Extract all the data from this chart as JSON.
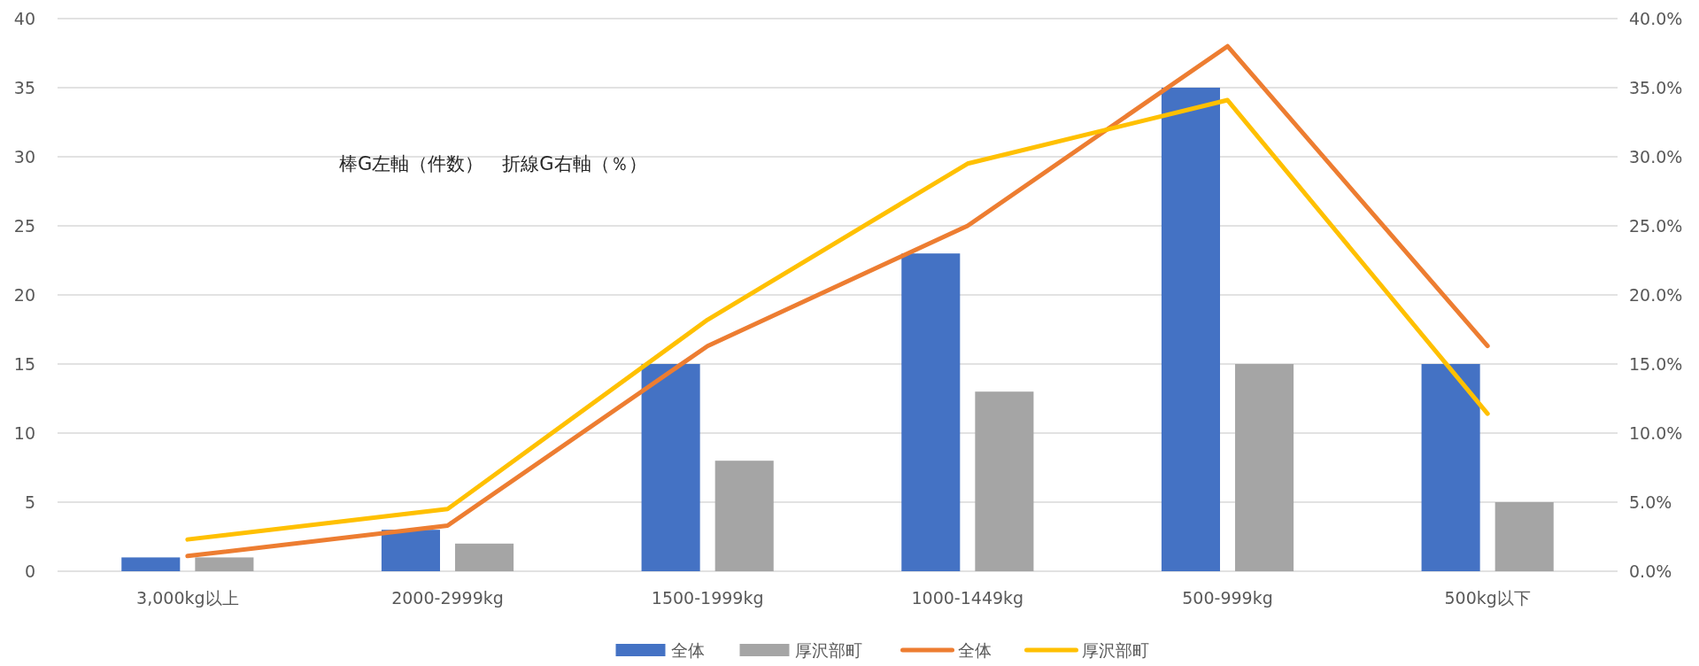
{
  "chart_data": {
    "type": "bar",
    "categories": [
      "3,000kg以上",
      "2000-2999kg",
      "1500-1999kg",
      "1000-1449kg",
      "500-999kg",
      "500kg以下"
    ],
    "series": [
      {
        "name": "全体",
        "color": "#4472c4",
        "values": [
          1,
          3,
          15,
          23,
          35,
          15
        ]
      },
      {
        "name": "厚沢部町",
        "color": "#a5a5a5",
        "values": [
          1,
          2,
          8,
          13,
          15,
          5
        ]
      },
      {
        "name": "全体",
        "type": "line",
        "axis": "y2",
        "color": "#ed7d31",
        "values": [
          1.1,
          3.3,
          16.3,
          25.0,
          38.0,
          16.3
        ]
      },
      {
        "name": "厚沢部町",
        "type": "line",
        "axis": "y2",
        "color": "#ffc000",
        "values": [
          2.3,
          4.5,
          18.2,
          29.5,
          34.1,
          11.4
        ]
      }
    ],
    "ylim": [
      0,
      40
    ],
    "yticks": [
      0,
      5,
      10,
      15,
      20,
      25,
      30,
      35,
      40
    ],
    "y2lim": [
      0,
      40
    ],
    "y2ticks": [
      {
        "value": 0,
        "label": "0.0%"
      },
      {
        "value": 5,
        "label": "5.0%"
      },
      {
        "value": 10,
        "label": "10.0%"
      },
      {
        "value": 15,
        "label": "15.0%"
      },
      {
        "value": 20,
        "label": "20.0%"
      },
      {
        "value": 25,
        "label": "25.0%"
      },
      {
        "value": 30,
        "label": "30.0%"
      },
      {
        "value": 35,
        "label": "35.0%"
      },
      {
        "value": 40,
        "label": "40.0%"
      }
    ],
    "grid": "y",
    "legend": "bottom",
    "annotations": [
      "棒G左軸（件数）　折線G右軸（％）"
    ]
  }
}
